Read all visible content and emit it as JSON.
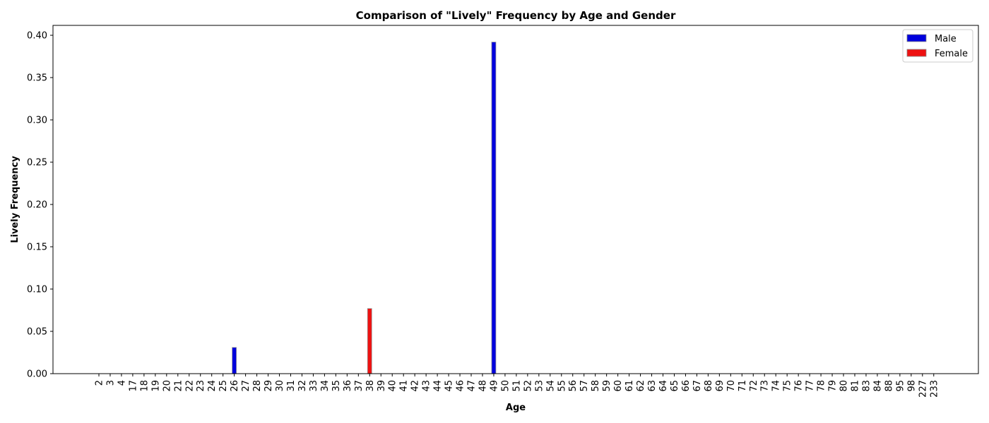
{
  "chart_data": {
    "type": "bar",
    "title": "Comparison of \"Lively\" Frequency by Age and Gender",
    "xlabel": "Age",
    "ylabel": "Lively Frequency",
    "ylim": [
      0,
      0.4117
    ],
    "yticks": [
      "0.00",
      "0.05",
      "0.10",
      "0.15",
      "0.20",
      "0.25",
      "0.30",
      "0.35",
      "0.40"
    ],
    "legend_position": "top-right",
    "grid": false,
    "categories": [
      "2",
      "3",
      "4",
      "17",
      "18",
      "19",
      "20",
      "21",
      "22",
      "23",
      "24",
      "25",
      "26",
      "27",
      "28",
      "29",
      "30",
      "31",
      "32",
      "33",
      "34",
      "35",
      "36",
      "37",
      "38",
      "39",
      "40",
      "41",
      "42",
      "43",
      "44",
      "45",
      "46",
      "47",
      "48",
      "49",
      "50",
      "51",
      "52",
      "53",
      "54",
      "55",
      "56",
      "57",
      "58",
      "59",
      "60",
      "61",
      "62",
      "63",
      "64",
      "65",
      "66",
      "67",
      "68",
      "69",
      "70",
      "71",
      "72",
      "73",
      "74",
      "75",
      "76",
      "77",
      "78",
      "79",
      "80",
      "81",
      "83",
      "84",
      "88",
      "95",
      "98",
      "227",
      "233"
    ],
    "series": [
      {
        "name": "Male",
        "color": "#0000dd",
        "values": [
          0,
          0,
          0,
          0,
          0,
          0,
          0,
          0,
          0,
          0,
          0,
          0,
          0.031,
          0,
          0,
          0,
          0,
          0,
          0,
          0,
          0,
          0,
          0,
          0,
          0,
          0,
          0,
          0,
          0,
          0,
          0,
          0,
          0,
          0,
          0,
          0.392,
          0,
          0,
          0,
          0,
          0,
          0,
          0,
          0,
          0,
          0,
          0,
          0,
          0,
          0,
          0,
          0,
          0,
          0,
          0,
          0,
          0,
          0,
          0,
          0,
          0,
          0,
          0,
          0,
          0,
          0,
          0,
          0,
          0,
          0,
          0,
          0,
          0,
          0,
          0
        ]
      },
      {
        "name": "Female",
        "color": "#ee1111",
        "values": [
          0,
          0,
          0,
          0,
          0,
          0,
          0,
          0,
          0,
          0,
          0,
          0,
          0,
          0,
          0,
          0,
          0,
          0,
          0,
          0,
          0,
          0,
          0,
          0,
          0.077,
          0,
          0,
          0,
          0,
          0,
          0,
          0,
          0,
          0,
          0,
          0,
          0,
          0,
          0,
          0,
          0,
          0,
          0,
          0,
          0,
          0,
          0,
          0,
          0,
          0,
          0,
          0,
          0,
          0,
          0,
          0,
          0,
          0,
          0,
          0,
          0,
          0,
          0,
          0,
          0,
          0,
          0,
          0,
          0,
          0,
          0,
          0,
          0,
          0,
          0
        ]
      }
    ]
  }
}
